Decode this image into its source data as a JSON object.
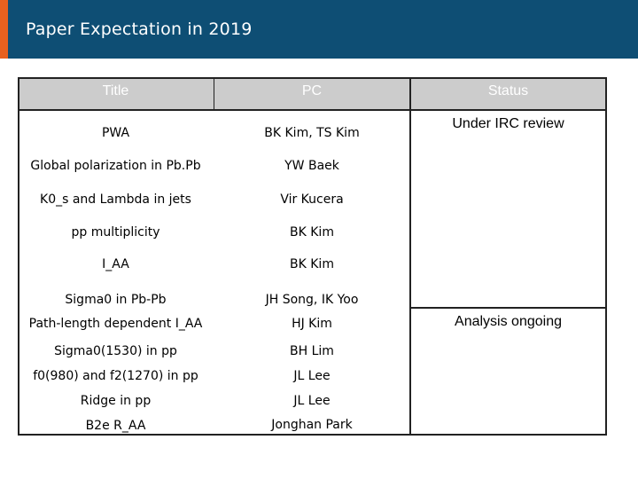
{
  "title": "Paper Expectation in 2019",
  "table": {
    "headers": [
      "Title",
      "PC",
      "Status"
    ],
    "rows": [
      {
        "title": "PWA",
        "pc": "BK Kim, TS Kim"
      },
      {
        "title": "Global polarization in Pb.Pb",
        "pc": "YW Baek"
      },
      {
        "title": "K0_s and Lambda in jets",
        "pc": "Vir Kucera"
      },
      {
        "title": "pp multiplicity",
        "pc": "BK Kim"
      },
      {
        "title": "I_AA",
        "pc": "BK Kim"
      },
      {
        "title": "Sigma0 in Pb-Pb",
        "pc": "JH Song, IK Yoo"
      },
      {
        "title": "Path-length dependent I_AA",
        "pc": "HJ Kim"
      },
      {
        "title": "Sigma0(1530) in pp",
        "pc": "BH Lim"
      },
      {
        "title": "f0(980) and f2(1270) in pp",
        "pc": "JL Lee"
      },
      {
        "title": "Ridge in pp",
        "pc": "JL Lee"
      },
      {
        "title": "B2e R_AA",
        "pc": "Jonghan Park"
      }
    ],
    "status": [
      "Under IRC review",
      "Analysis ongoing"
    ]
  }
}
